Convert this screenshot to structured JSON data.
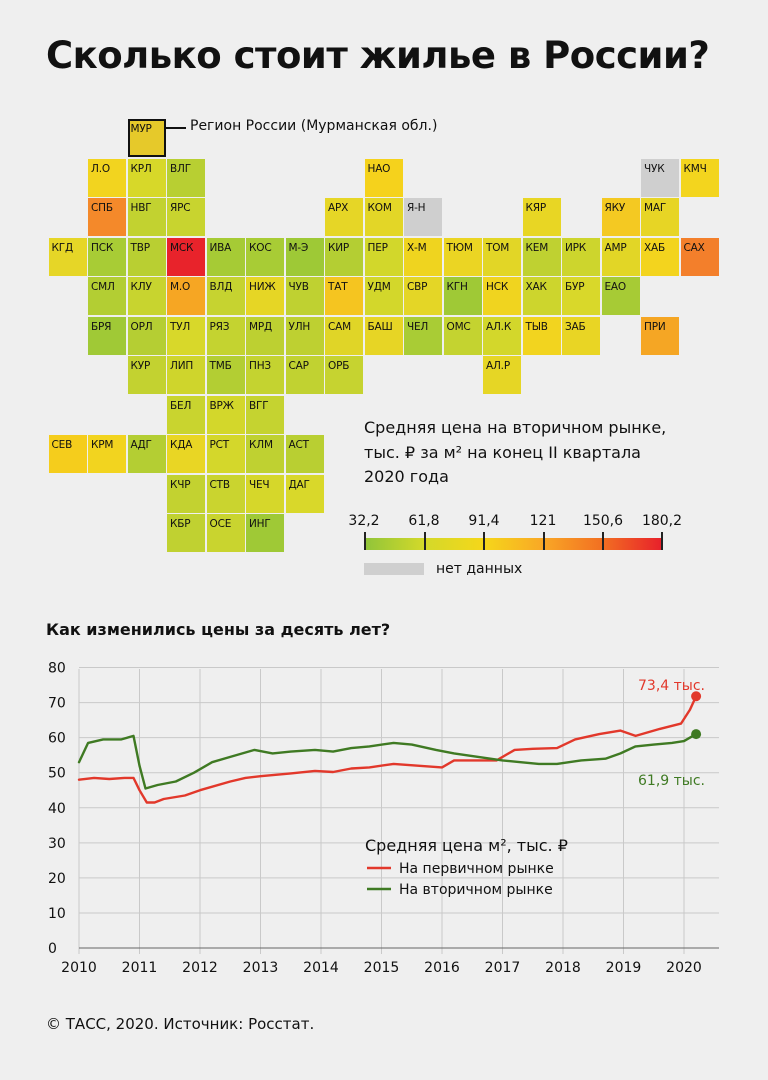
{
  "title": "Сколько стоит жилье в России?",
  "map": {
    "example": {
      "code": "МУР",
      "label": "Регион России (Мурманская обл.)"
    },
    "legend_title": [
      "Средняя цена на вторичном рынке,",
      "тыс. ₽ за м² на конец II квартала",
      "2020 года"
    ],
    "scale_ticks": [
      "32,2",
      "61,8",
      "91,4",
      "121",
      "150,6",
      "180,2"
    ],
    "scale_colors": [
      "#8fc43a",
      "#d3d92a",
      "#f5d71a",
      "#f9a826",
      "#f26f22",
      "#e8202b"
    ],
    "no_data_label": "нет данных",
    "no_data_color": "#cfcfcf",
    "regions": [
      {
        "code": "МУР",
        "color": "#e6c92a"
      },
      {
        "code": "Л.О",
        "color": "#f2d41f"
      },
      {
        "code": "КРЛ",
        "color": "#d7d829"
      },
      {
        "code": "ВЛГ",
        "color": "#b8cf32"
      },
      {
        "code": "НАО",
        "color": "#f5d21c"
      },
      {
        "code": "ЧУК",
        "color": "#cfcfcf"
      },
      {
        "code": "КМЧ",
        "color": "#f3d51e"
      },
      {
        "code": "СПБ",
        "color": "#f4892a"
      },
      {
        "code": "НВГ",
        "color": "#c2d230"
      },
      {
        "code": "ЯРС",
        "color": "#c8d42f"
      },
      {
        "code": "АРХ",
        "color": "#e6d626"
      },
      {
        "code": "КОМ",
        "color": "#e3d627"
      },
      {
        "code": "Я-Н",
        "color": "#cfcfcf"
      },
      {
        "code": "КЯР",
        "color": "#e8d624"
      },
      {
        "code": "ЯКУ",
        "color": "#f4c922"
      },
      {
        "code": "МАГ",
        "color": "#e7d525"
      },
      {
        "code": "КГД",
        "color": "#e6d627"
      },
      {
        "code": "ПСК",
        "color": "#a8cc35"
      },
      {
        "code": "ТВР",
        "color": "#b9cf32"
      },
      {
        "code": "МСК",
        "color": "#e8232b"
      },
      {
        "code": "ИВА",
        "color": "#a6cb35"
      },
      {
        "code": "КОС",
        "color": "#a8cc35"
      },
      {
        "code": "М-Э",
        "color": "#9ec936"
      },
      {
        "code": "КИР",
        "color": "#b4ce33"
      },
      {
        "code": "ПЕР",
        "color": "#d2d72b"
      },
      {
        "code": "Х-М",
        "color": "#efd41f"
      },
      {
        "code": "ТЮМ",
        "color": "#ebd523"
      },
      {
        "code": "ТОМ",
        "color": "#e2d626"
      },
      {
        "code": "КЕМ",
        "color": "#bfd131"
      },
      {
        "code": "ИРК",
        "color": "#cdd52d"
      },
      {
        "code": "АМР",
        "color": "#e2d626"
      },
      {
        "code": "ХАБ",
        "color": "#f3d41e"
      },
      {
        "code": "САХ",
        "color": "#f37f2b"
      },
      {
        "code": "СМЛ",
        "color": "#b3ce33"
      },
      {
        "code": "КЛУ",
        "color": "#c8d42f"
      },
      {
        "code": "М.О",
        "color": "#f6a623"
      },
      {
        "code": "ВЛД",
        "color": "#c6d330"
      },
      {
        "code": "НИЖ",
        "color": "#e6d625"
      },
      {
        "code": "ЧУВ",
        "color": "#bfd131"
      },
      {
        "code": "ТАТ",
        "color": "#f5c520"
      },
      {
        "code": "УДМ",
        "color": "#d3d72b"
      },
      {
        "code": "СВР",
        "color": "#e4d626"
      },
      {
        "code": "КГН",
        "color": "#9fc936"
      },
      {
        "code": "НСК",
        "color": "#f0d41f"
      },
      {
        "code": "ХАК",
        "color": "#cdd52d"
      },
      {
        "code": "БУР",
        "color": "#d9d82a"
      },
      {
        "code": "ЕАО",
        "color": "#a7cb35"
      },
      {
        "code": "БРЯ",
        "color": "#a0c936"
      },
      {
        "code": "ОРЛ",
        "color": "#b5ce33"
      },
      {
        "code": "ТУЛ",
        "color": "#d8d82a"
      },
      {
        "code": "РЯЗ",
        "color": "#c4d330"
      },
      {
        "code": "МРД",
        "color": "#bdd031"
      },
      {
        "code": "УЛН",
        "color": "#bed031"
      },
      {
        "code": "САМ",
        "color": "#e0d527"
      },
      {
        "code": "БАШ",
        "color": "#e7d525"
      },
      {
        "code": "ЧЕЛ",
        "color": "#a9cc35"
      },
      {
        "code": "ОМС",
        "color": "#c4d330"
      },
      {
        "code": "АЛ.К",
        "color": "#d3d72b"
      },
      {
        "code": "ТЫВ",
        "color": "#f2d41f"
      },
      {
        "code": "ЗАБ",
        "color": "#e9d524"
      },
      {
        "code": "ПРИ",
        "color": "#f5a624"
      },
      {
        "code": "КУР",
        "color": "#c3d230"
      },
      {
        "code": "ЛИП",
        "color": "#cfd52c"
      },
      {
        "code": "ТМБ",
        "color": "#b3ce33"
      },
      {
        "code": "ПНЗ",
        "color": "#c4d330"
      },
      {
        "code": "САР",
        "color": "#c1d231"
      },
      {
        "code": "ОРБ",
        "color": "#c6d330"
      },
      {
        "code": "АЛ.Р",
        "color": "#e6d625"
      },
      {
        "code": "БЕЛ",
        "color": "#c9d42f"
      },
      {
        "code": "ВРЖ",
        "color": "#d3d72b"
      },
      {
        "code": "ВГГ",
        "color": "#c5d330"
      },
      {
        "code": "СЕВ",
        "color": "#f5cd1c"
      },
      {
        "code": "КРМ",
        "color": "#f2d41f"
      },
      {
        "code": "АДГ",
        "color": "#b4ce33"
      },
      {
        "code": "КДА",
        "color": "#e9d624"
      },
      {
        "code": "РСТ",
        "color": "#d4d72b"
      },
      {
        "code": "КЛМ",
        "color": "#bfd131"
      },
      {
        "code": "АСТ",
        "color": "#b9cf32"
      },
      {
        "code": "КЧР",
        "color": "#c3d230"
      },
      {
        "code": "СТВ",
        "color": "#cad42f"
      },
      {
        "code": "ЧЕЧ",
        "color": "#d6d72a"
      },
      {
        "code": "ДАГ",
        "color": "#d9d82a"
      },
      {
        "code": "КБР",
        "color": "#c0d131"
      },
      {
        "code": "ОСЕ",
        "color": "#c9d42f"
      },
      {
        "code": "ИНГ",
        "color": "#9fc936"
      }
    ]
  },
  "chart_title": "Как изменились цены за десять лет?",
  "chart_data": {
    "type": "line",
    "title": "Как изменились цены за десять лет?",
    "legend_title": "Средняя цена м², тыс. ₽",
    "xlim": [
      2010,
      2020.4
    ],
    "ylim": [
      0,
      80
    ],
    "x_ticks": [
      "2010",
      "2011",
      "2012",
      "2013",
      "2014",
      "2015",
      "2016",
      "2017",
      "2018",
      "2019",
      "2020"
    ],
    "y_ticks": [
      "0",
      "10",
      "20",
      "30",
      "40",
      "50",
      "60",
      "70",
      "80"
    ],
    "grid": true,
    "legend_position": "bottom-center",
    "series": [
      {
        "name": "На первичном рынке",
        "color": "#e2382b",
        "end_label": "73,4 тыс.",
        "points": [
          [
            2010,
            48
          ],
          [
            2010.25,
            48.5
          ],
          [
            2010.5,
            48.2
          ],
          [
            2010.75,
            48.5
          ],
          [
            2010.9,
            48.5
          ],
          [
            2011.0,
            45
          ],
          [
            2011.12,
            41.5
          ],
          [
            2011.25,
            41.5
          ],
          [
            2011.4,
            42.5
          ],
          [
            2011.75,
            43.5
          ],
          [
            2012.0,
            45
          ],
          [
            2012.5,
            47.5
          ],
          [
            2012.75,
            48.5
          ],
          [
            2013.0,
            49
          ],
          [
            2013.5,
            49.8
          ],
          [
            2013.9,
            50.5
          ],
          [
            2014.2,
            50.2
          ],
          [
            2014.5,
            51.2
          ],
          [
            2014.8,
            51.5
          ],
          [
            2015.2,
            52.5
          ],
          [
            2015.6,
            52
          ],
          [
            2016.0,
            51.5
          ],
          [
            2016.2,
            53.5
          ],
          [
            2016.6,
            53.5
          ],
          [
            2016.9,
            53.5
          ],
          [
            2017.2,
            56.5
          ],
          [
            2017.5,
            56.8
          ],
          [
            2017.9,
            57
          ],
          [
            2018.2,
            59.5
          ],
          [
            2018.6,
            61
          ],
          [
            2018.95,
            62
          ],
          [
            2019.2,
            60.5
          ],
          [
            2019.6,
            62.5
          ],
          [
            2019.95,
            64
          ],
          [
            2020.1,
            68
          ],
          [
            2020.2,
            71.8
          ]
        ]
      },
      {
        "name": "На вторичном рынке",
        "color": "#3f7a23",
        "end_label": "61,9 тыс.",
        "points": [
          [
            2010,
            53
          ],
          [
            2010.15,
            58.5
          ],
          [
            2010.4,
            59.5
          ],
          [
            2010.7,
            59.5
          ],
          [
            2010.9,
            60.5
          ],
          [
            2011.0,
            52
          ],
          [
            2011.1,
            45.5
          ],
          [
            2011.3,
            46.5
          ],
          [
            2011.6,
            47.5
          ],
          [
            2011.9,
            50
          ],
          [
            2012.2,
            53
          ],
          [
            2012.5,
            54.5
          ],
          [
            2012.9,
            56.5
          ],
          [
            2013.2,
            55.5
          ],
          [
            2013.5,
            56
          ],
          [
            2013.9,
            56.5
          ],
          [
            2014.2,
            56
          ],
          [
            2014.5,
            57
          ],
          [
            2014.8,
            57.5
          ],
          [
            2015.2,
            58.5
          ],
          [
            2015.5,
            58
          ],
          [
            2015.9,
            56.5
          ],
          [
            2016.2,
            55.5
          ],
          [
            2016.6,
            54.5
          ],
          [
            2017.0,
            53.5
          ],
          [
            2017.3,
            53
          ],
          [
            2017.6,
            52.5
          ],
          [
            2017.9,
            52.5
          ],
          [
            2018.3,
            53.5
          ],
          [
            2018.7,
            54
          ],
          [
            2018.95,
            55.5
          ],
          [
            2019.2,
            57.5
          ],
          [
            2019.5,
            58
          ],
          [
            2019.8,
            58.5
          ],
          [
            2020.0,
            59
          ],
          [
            2020.2,
            61
          ]
        ]
      }
    ]
  },
  "source": "© ТАСС, 2020. Источник: Росстат."
}
